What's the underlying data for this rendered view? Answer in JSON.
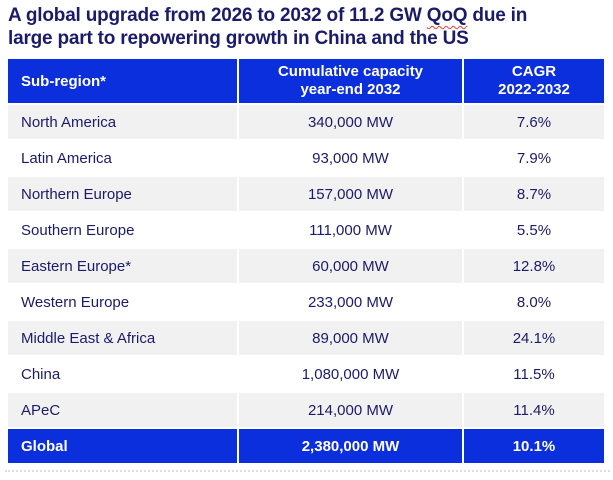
{
  "title": {
    "line1_before": "A global upgrade from 2026 to 2032 of 11.2 GW ",
    "spellcheck_word": "QoQ",
    "line1_after": " due in",
    "line2": "large part to repowering growth in China and the US"
  },
  "table": {
    "headers": {
      "region": "Sub-region*",
      "capacity_line1": "Cumulative capacity",
      "capacity_line2": "year-end 2032",
      "cagr_line1": "CAGR",
      "cagr_line2": "2022-2032"
    },
    "rows": [
      {
        "region": "North America",
        "capacity": "340,000 MW",
        "cagr": "7.6%"
      },
      {
        "region": "Latin America",
        "capacity": "93,000 MW",
        "cagr": "7.9%"
      },
      {
        "region": "Northern Europe",
        "capacity": "157,000 MW",
        "cagr": "8.7%"
      },
      {
        "region": "Southern Europe",
        "capacity": "111,000 MW",
        "cagr": "5.5%"
      },
      {
        "region": "Eastern Europe*",
        "capacity": "60,000 MW",
        "cagr": "12.8%"
      },
      {
        "region": "Western Europe",
        "capacity": "233,000 MW",
        "cagr": "8.0%"
      },
      {
        "region": "Middle East & Africa",
        "capacity": "89,000 MW",
        "cagr": "24.1%"
      },
      {
        "region": "China",
        "capacity": "1,080,000 MW",
        "cagr": "11.5%"
      },
      {
        "region": "APeC",
        "capacity": "214,000 MW",
        "cagr": "11.4%"
      }
    ],
    "total": {
      "region": "Global",
      "capacity": "2,380,000 MW",
      "cagr": "10.1%"
    }
  },
  "colors": {
    "header_blue": "#0C2FDE",
    "text_navy": "#1B1B6B",
    "band_gray": "#F1F1F1",
    "spellcheck_red": "#E5432E"
  },
  "chart_data": {
    "type": "table",
    "title": "A global upgrade from 2026 to 2032 of 11.2 GW QoQ due in large part to repowering growth in China and the US",
    "columns": [
      "Sub-region*",
      "Cumulative capacity year-end 2032",
      "CAGR 2022-2032"
    ],
    "rows": [
      [
        "North America",
        "340,000 MW",
        "7.6%"
      ],
      [
        "Latin America",
        "93,000 MW",
        "7.9%"
      ],
      [
        "Northern Europe",
        "157,000 MW",
        "8.7%"
      ],
      [
        "Southern Europe",
        "111,000 MW",
        "5.5%"
      ],
      [
        "Eastern Europe*",
        "60,000 MW",
        "12.8%"
      ],
      [
        "Western Europe",
        "233,000 MW",
        "8.0%"
      ],
      [
        "Middle East & Africa",
        "89,000 MW",
        "24.1%"
      ],
      [
        "China",
        "1,080,000 MW",
        "11.5%"
      ],
      [
        "APeC",
        "214,000 MW",
        "11.4%"
      ],
      [
        "Global",
        "2,380,000 MW",
        "10.1%"
      ]
    ]
  }
}
